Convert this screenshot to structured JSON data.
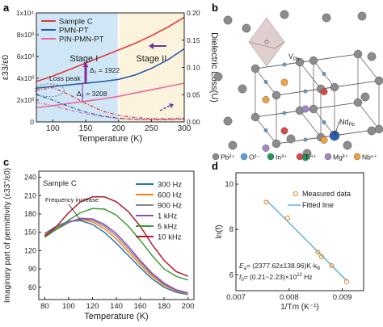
{
  "panels": {
    "a": {
      "label": "a"
    },
    "b": {
      "label": "b"
    },
    "c": {
      "label": "c"
    },
    "d": {
      "label": "d"
    }
  },
  "colors": {
    "stage1_bg": "#cfe6f6",
    "stage2_bg": "#fbf3dc",
    "sample_c": "#e03a3a",
    "pmn_pt": "#2a5caa",
    "pin_pmn_pt": "#e86a9a",
    "stage_divider": "#ffffff",
    "c_300": "#1f77b4",
    "c_600": "#ff7f0e",
    "c_900": "#888888",
    "c_1k": "#8a4fbf",
    "c_5k": "#3a9a3a",
    "c_10k": "#b01e2e",
    "pb": "#8c8c8c",
    "o": "#5aa0d8",
    "in": "#1f9a5a",
    "ti": "#d84a4a",
    "mg": "#a088c8",
    "nb": "#f0a040",
    "octahedron": "#c8a8a8",
    "fit_line": "#4aa8d8",
    "measured": "#f08020"
  },
  "chart_data": [
    {
      "panel": "a",
      "type": "line",
      "xlabel": "Temperature (K)",
      "ylabel_left": "ε33/ε0",
      "ylabel_right": "Dielectric Loss(U)",
      "xlim": [
        75,
        300
      ],
      "ylim_left": [
        0,
        10000
      ],
      "ylim_right": [
        0,
        0.2
      ],
      "x_ticks": [
        "100",
        "150",
        "200",
        "250",
        "300"
      ],
      "y_left_ticks": [
        "0",
        "2x10³",
        "4x10³",
        "6x10³",
        "8x10³",
        "1x10⁴"
      ],
      "y_right_ticks": [
        "0.00",
        "0.05",
        "0.10",
        "0.15",
        "0.20"
      ],
      "stage_labels": [
        "Stage I",
        "Stage II"
      ],
      "stage_boundary": 200,
      "legend": [
        "Sample C",
        "PMN-PT",
        "PIN-PMN-PT"
      ],
      "annotations": {
        "loss_peak": "Loss peak",
        "delta1": "Δ₁ = 1922",
        "delta2": "Δ₂ = 3208"
      },
      "series_eps": [
        {
          "name": "Sample C",
          "x": [
            75,
            100,
            125,
            150,
            175,
            200,
            225,
            250,
            275,
            300
          ],
          "y": [
            3700,
            4200,
            4800,
            5400,
            6000,
            6600,
            7200,
            7900,
            8700,
            9600
          ]
        },
        {
          "name": "PMN-PT",
          "x": [
            75,
            100,
            125,
            150,
            175,
            200,
            225,
            250,
            275,
            300
          ],
          "y": [
            3100,
            3250,
            3400,
            3550,
            3700,
            3900,
            4300,
            4900,
            5700,
            6700
          ]
        },
        {
          "name": "PIN-PMN-PT",
          "x": [
            75,
            100,
            125,
            150,
            175,
            200,
            225,
            250,
            275,
            300
          ],
          "y": [
            1300,
            1500,
            1700,
            1900,
            2100,
            2350,
            2650,
            2950,
            3250,
            3550
          ]
        }
      ],
      "series_loss": [
        {
          "name": "Sample C",
          "x": [
            75,
            100,
            125,
            150,
            175,
            200,
            225,
            250,
            275,
            300
          ],
          "y": [
            0.058,
            0.063,
            0.05,
            0.034,
            0.02,
            0.012,
            0.008,
            0.006,
            0.006,
            0.007
          ]
        },
        {
          "name": "PMN-PT",
          "x": [
            75,
            100,
            125,
            150,
            175,
            200,
            225,
            250,
            275,
            300
          ],
          "y": [
            0.05,
            0.04,
            0.028,
            0.018,
            0.011,
            0.007,
            0.005,
            0.004,
            0.004,
            0.005
          ]
        },
        {
          "name": "PIN-PMN-PT",
          "x": [
            75,
            100,
            125,
            150,
            175,
            200,
            225,
            250,
            275,
            300
          ],
          "y": [
            0.036,
            0.03,
            0.022,
            0.015,
            0.01,
            0.006,
            0.004,
            0.004,
            0.004,
            0.005
          ]
        }
      ]
    },
    {
      "panel": "c",
      "type": "line",
      "title": "Sample C",
      "xlabel": "Temperature (K)",
      "ylabel": "Imaginary part of permittivity (ε33''/ε0)",
      "xlim": [
        75,
        205
      ],
      "ylim": [
        40,
        250
      ],
      "x_ticks": [
        "80",
        "100",
        "120",
        "140",
        "160",
        "180",
        "200"
      ],
      "y_ticks": [
        "60",
        "90",
        "120",
        "150",
        "180",
        "210",
        "240"
      ],
      "annotation": "Frequency increase",
      "series": [
        {
          "name": "300 Hz",
          "x": [
            80,
            90,
            100,
            110,
            120,
            130,
            140,
            150,
            160,
            170,
            180,
            190,
            200
          ],
          "y": [
            148,
            160,
            168,
            169,
            163,
            150,
            132,
            112,
            92,
            74,
            60,
            52,
            48
          ]
        },
        {
          "name": "600 Hz",
          "x": [
            80,
            90,
            100,
            110,
            120,
            130,
            140,
            150,
            160,
            170,
            180,
            190,
            200
          ],
          "y": [
            146,
            158,
            167,
            171,
            167,
            156,
            139,
            118,
            97,
            78,
            63,
            54,
            49
          ]
        },
        {
          "name": "900 Hz",
          "x": [
            80,
            90,
            100,
            110,
            120,
            130,
            140,
            150,
            160,
            170,
            180,
            190,
            200
          ],
          "y": [
            145,
            156,
            167,
            172,
            170,
            160,
            144,
            123,
            101,
            81,
            65,
            55,
            50
          ]
        },
        {
          "name": "1 kHz",
          "x": [
            80,
            90,
            100,
            110,
            120,
            130,
            140,
            150,
            160,
            170,
            180,
            190,
            200
          ],
          "y": [
            144,
            155,
            166,
            173,
            172,
            163,
            148,
            127,
            104,
            83,
            67,
            56,
            51
          ]
        },
        {
          "name": "5 kHz",
          "x": [
            80,
            90,
            100,
            110,
            120,
            130,
            140,
            150,
            160,
            170,
            180,
            190,
            200
          ],
          "y": [
            142,
            155,
            170,
            182,
            189,
            188,
            178,
            160,
            137,
            112,
            90,
            78,
            72
          ]
        },
        {
          "name": "10 kHz",
          "x": [
            80,
            90,
            100,
            110,
            120,
            130,
            140,
            150,
            160,
            170,
            180,
            190,
            200
          ],
          "y": [
            143,
            160,
            182,
            200,
            208,
            208,
            200,
            184,
            160,
            130,
            104,
            86,
            78
          ]
        }
      ]
    },
    {
      "panel": "d",
      "type": "scatter",
      "xlabel": "1/Tm (K⁻¹)",
      "ylabel": "ln(f)",
      "xlim": [
        0.007,
        0.0094
      ],
      "ylim": [
        5.3,
        10.5
      ],
      "x_ticks": [
        "0.007",
        "0.008",
        "0.009"
      ],
      "y_ticks": [
        "6",
        "8",
        "10"
      ],
      "legend": [
        "Measured data",
        "Fitted line"
      ],
      "points": {
        "x": [
          0.00757,
          0.00797,
          0.00854,
          0.00861,
          0.0088,
          0.00908
        ],
        "y": [
          9.2,
          8.5,
          7.0,
          6.8,
          6.4,
          5.7
        ]
      },
      "fit": {
        "x": [
          0.00757,
          0.00908
        ],
        "y": [
          9.3,
          5.75
        ]
      },
      "equation1_main": "E",
      "equation1_sub": "a",
      "equation1_rest": "= (2377.62±138.96)K·k",
      "equation1_sub2": "B",
      "equation2_main": "f",
      "equation2_sub": "0",
      "equation2_rest": "= (0.21~2.23)×10",
      "equation2_sup": "12",
      "equation2_unit": " Hz"
    }
  ],
  "structure": {
    "vpb_label_main": "V",
    "vpb_label_sub": "Pb",
    "ndpb_label_main": "Nd",
    "ndpb_label_sub": "Pb",
    "legend": [
      {
        "label": "Pb²⁺",
        "color_key": "pb"
      },
      {
        "label": "O²⁻",
        "color_key": "o"
      },
      {
        "label": "In³⁺",
        "color_key": "in"
      },
      {
        "label": "Ti⁴⁺",
        "color_key": "ti"
      },
      {
        "label": "Mg²⁺",
        "color_key": "mg"
      },
      {
        "label": "Nb⁵⁺",
        "color_key": "nb"
      }
    ]
  }
}
